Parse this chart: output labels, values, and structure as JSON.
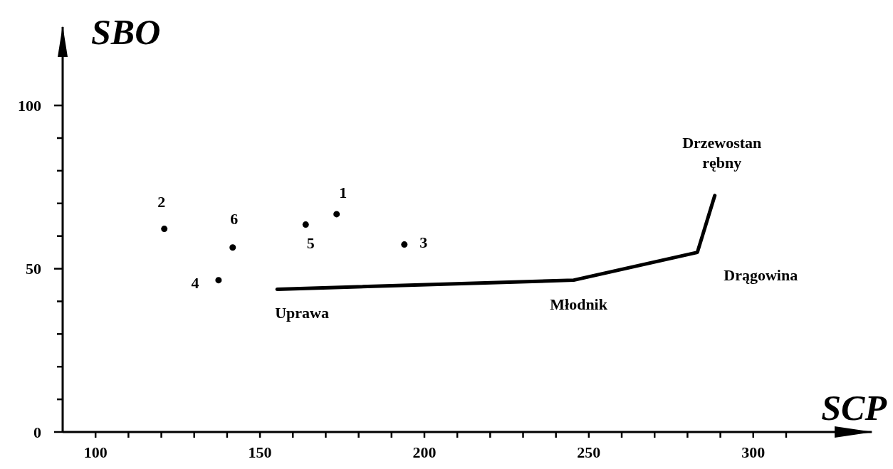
{
  "chart_data": {
    "type": "scatter",
    "xlabel": "SCP",
    "ylabel": "SBO",
    "xlim": [
      90,
      336
    ],
    "ylim": [
      0,
      124
    ],
    "xticks": [
      100,
      {
        "value": 110,
        "label": null
      },
      {
        "value": 120,
        "label": null
      },
      {
        "value": 130,
        "label": null
      },
      {
        "value": 140,
        "label": null
      },
      150,
      {
        "value": 160,
        "label": null
      },
      {
        "value": 170,
        "label": null
      },
      {
        "value": 180,
        "label": null
      },
      {
        "value": 190,
        "label": null
      },
      200,
      {
        "value": 210,
        "label": null
      },
      {
        "value": 220,
        "label": null
      },
      {
        "value": 230,
        "label": null
      },
      {
        "value": 240,
        "label": null
      },
      250,
      {
        "value": 260,
        "label": null
      },
      {
        "value": 270,
        "label": null
      },
      {
        "value": 280,
        "label": null
      },
      {
        "value": 290,
        "label": null
      },
      300,
      {
        "value": 310,
        "label": null
      }
    ],
    "yticks": [
      0,
      {
        "value": 10,
        "label": null
      },
      {
        "value": 20,
        "label": null
      },
      {
        "value": 30,
        "label": null
      },
      {
        "value": 40,
        "label": null
      },
      50,
      {
        "value": 60,
        "label": null
      },
      {
        "value": 70,
        "label": null
      },
      {
        "value": 80,
        "label": null
      },
      {
        "value": 90,
        "label": null
      },
      100
    ],
    "grid": false,
    "series": [
      {
        "color": "#000000",
        "marker": "circle",
        "x": [
          173.3,
          120.9,
          193.9,
          137.4,
          163.9,
          141.7
        ],
        "values": [
          66.7,
          62.2,
          57.4,
          46.5,
          63.5,
          56.5
        ]
      },
      {
        "type": "line",
        "color": "#000000",
        "marker": "none",
        "line_style": "solid",
        "x": [
          155.2,
          245.4,
          283,
          288.3
        ],
        "values": [
          43.7,
          46.5,
          55,
          72.4
        ]
      }
    ],
    "annotations": [
      {
        "text": "1",
        "x": 173.3,
        "y": 66.7
      },
      {
        "text": "2",
        "x": 120.9,
        "y": 62.2
      },
      {
        "text": "3",
        "x": 193.9,
        "y": 57.4
      },
      {
        "text": "4",
        "x": 137.4,
        "y": 46.5
      },
      {
        "text": "5",
        "x": 163.9,
        "y": 63.5
      },
      {
        "text": "6",
        "x": 141.7,
        "y": 56.5
      },
      {
        "text": "Uprawa",
        "x": 155.2,
        "y": 43.7
      },
      {
        "text": "Młodnik",
        "x": 245.4,
        "y": 46.5
      },
      {
        "text": "Drągowina",
        "x": 283,
        "y": 55
      },
      {
        "text": "Drzewostan\nrębny",
        "x": 288.3,
        "y": 72.4
      }
    ]
  }
}
